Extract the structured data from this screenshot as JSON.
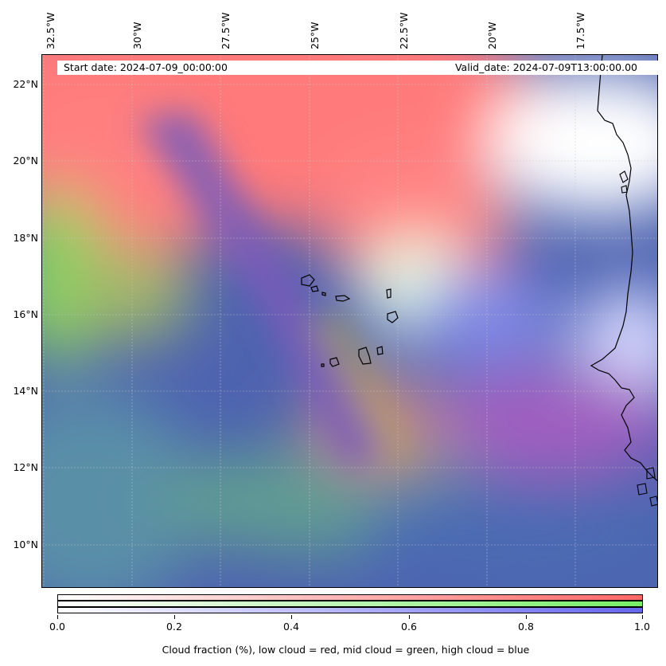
{
  "map": {
    "longitude_labels": [
      "32.5°W",
      "30°W",
      "27.5°W",
      "25°W",
      "22.5°W",
      "20°W",
      "17.5°W"
    ],
    "latitude_labels": [
      "22°N",
      "20°N",
      "18°N",
      "16°N",
      "14°N",
      "12°N",
      "10°N"
    ],
    "start_date": "Start date: 2024-07-09_00:00:00",
    "valid_date": "Valid_date: 2024-07-09T13:00:00.00",
    "layer_colors": {
      "low_cloud": "#ff6f6f",
      "mid_cloud": "#7be46b",
      "high_cloud": "#5b5bd6",
      "clear": "#ffffff"
    }
  },
  "colorbar": {
    "ticks": [
      "0.0",
      "0.2",
      "0.4",
      "0.6",
      "0.8",
      "1.0"
    ],
    "tick_values": [
      0.0,
      0.2,
      0.4,
      0.6,
      0.8,
      1.0
    ],
    "caption": "Cloud fraction (%), low cloud = red, mid cloud = green, high cloud = blue",
    "bars": [
      {
        "name": "low cloud",
        "color": "#ff6666"
      },
      {
        "name": "mid cloud",
        "color": "#77ee66"
      },
      {
        "name": "high cloud",
        "color": "#6666ee"
      }
    ]
  }
}
